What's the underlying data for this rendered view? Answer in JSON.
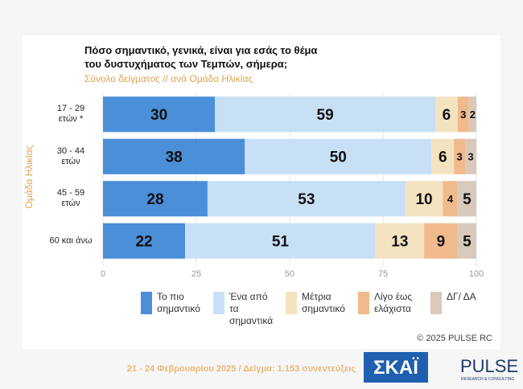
{
  "chart_data": {
    "type": "stacked-barh",
    "title": "Πόσο σημαντικό, γενικά, είναι για εσάς το θέμα του δυστυχήματος των Τεμπών, σήμερα;",
    "subtitle": "Σύνολο δείγματος // ανά Ομάδα Ηλικίας",
    "y_label": "Ομάδα Ηλικίας",
    "categories": [
      "17 - 29 ετών *",
      "30 - 44 ετών",
      "45 - 59 ετών",
      "60 και άνω"
    ],
    "series": [
      {
        "name": "Το πιο σημαντικό",
        "color": "#4a8fd8",
        "values": [
          30,
          38,
          28,
          22
        ]
      },
      {
        "name": "Ένα από τα σημαντικά",
        "color": "#c7e0f6",
        "values": [
          59,
          50,
          53,
          51
        ]
      },
      {
        "name": "Μέτρια σημαντικό",
        "color": "#f4e3c0",
        "values": [
          6,
          6,
          10,
          13
        ]
      },
      {
        "name": "Λίγο έως ελάχιστα",
        "color": "#f1ba8c",
        "values": [
          3,
          3,
          4,
          9
        ]
      },
      {
        "name": "ΔΓ/ ΔΑ",
        "color": "#d8c9bb",
        "values": [
          2,
          3,
          5,
          5
        ]
      }
    ],
    "xlim": [
      0,
      100
    ],
    "xticks": [
      0,
      25,
      50,
      75,
      100
    ],
    "grid": true,
    "copyright": "© 2025 PULSE RC",
    "footer": "21 - 24 Φεβρουαρίου 2025  /  Δείγμα:  1.153 συνεντεύξεις",
    "logos": [
      "ΣΚΑΪ",
      "PULSE",
      "RESEARCH & CONSULTING"
    ]
  }
}
